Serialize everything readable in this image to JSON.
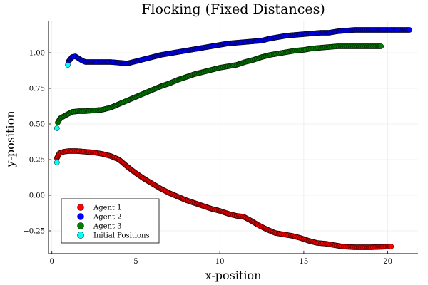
{
  "chart_data": {
    "type": "scatter",
    "title": "Flocking (Fixed Distances)",
    "xlabel": "x-position",
    "ylabel": "y-position",
    "xlim": [
      -0.2,
      21.8
    ],
    "ylim": [
      -0.41,
      1.22
    ],
    "x_ticks": [
      0,
      5,
      10,
      15,
      20
    ],
    "x_tick_labels": [
      "0",
      "5",
      "10",
      "15",
      "20"
    ],
    "y_ticks": [
      -0.25,
      0.0,
      0.25,
      0.5,
      0.75,
      1.0
    ],
    "y_tick_labels": [
      "−0.25",
      "0.00",
      "0.25",
      "0.50",
      "0.75",
      "1.00"
    ],
    "grid": true,
    "legend_position": "bottom-left",
    "series": [
      {
        "name": "Agent 1",
        "color": "#ff0000",
        "trajectory": [
          [
            0.3,
            0.26
          ],
          [
            0.45,
            0.295
          ],
          [
            0.7,
            0.305
          ],
          [
            1.0,
            0.31
          ],
          [
            1.5,
            0.31
          ],
          [
            2.0,
            0.305
          ],
          [
            2.5,
            0.3
          ],
          [
            3.0,
            0.29
          ],
          [
            3.5,
            0.275
          ],
          [
            4.0,
            0.25
          ],
          [
            4.5,
            0.2
          ],
          [
            5.0,
            0.155
          ],
          [
            5.5,
            0.115
          ],
          [
            6.0,
            0.08
          ],
          [
            6.5,
            0.045
          ],
          [
            7.0,
            0.015
          ],
          [
            7.5,
            -0.01
          ],
          [
            8.0,
            -0.035
          ],
          [
            8.5,
            -0.055
          ],
          [
            9.0,
            -0.075
          ],
          [
            9.5,
            -0.095
          ],
          [
            10.0,
            -0.11
          ],
          [
            10.5,
            -0.13
          ],
          [
            11.0,
            -0.145
          ],
          [
            11.4,
            -0.15
          ],
          [
            11.8,
            -0.175
          ],
          [
            12.3,
            -0.21
          ],
          [
            12.8,
            -0.24
          ],
          [
            13.3,
            -0.265
          ],
          [
            13.8,
            -0.275
          ],
          [
            14.3,
            -0.285
          ],
          [
            14.8,
            -0.3
          ],
          [
            15.3,
            -0.32
          ],
          [
            15.8,
            -0.335
          ],
          [
            16.3,
            -0.34
          ],
          [
            16.8,
            -0.35
          ],
          [
            17.3,
            -0.36
          ],
          [
            18.0,
            -0.365
          ],
          [
            19.0,
            -0.365
          ],
          [
            20.2,
            -0.36
          ]
        ]
      },
      {
        "name": "Agent 2",
        "color": "#0000ff",
        "trajectory": [
          [
            1.0,
            0.94
          ],
          [
            1.2,
            0.97
          ],
          [
            1.4,
            0.975
          ],
          [
            1.6,
            0.96
          ],
          [
            1.8,
            0.945
          ],
          [
            2.0,
            0.935
          ],
          [
            2.5,
            0.935
          ],
          [
            3.0,
            0.935
          ],
          [
            3.5,
            0.935
          ],
          [
            4.0,
            0.93
          ],
          [
            4.5,
            0.925
          ],
          [
            5.0,
            0.94
          ],
          [
            5.5,
            0.955
          ],
          [
            6.0,
            0.97
          ],
          [
            6.5,
            0.985
          ],
          [
            7.0,
            0.995
          ],
          [
            7.5,
            1.005
          ],
          [
            8.0,
            1.015
          ],
          [
            8.5,
            1.025
          ],
          [
            9.0,
            1.035
          ],
          [
            9.5,
            1.045
          ],
          [
            10.0,
            1.055
          ],
          [
            10.5,
            1.065
          ],
          [
            11.0,
            1.07
          ],
          [
            11.5,
            1.075
          ],
          [
            12.0,
            1.08
          ],
          [
            12.5,
            1.085
          ],
          [
            13.0,
            1.1
          ],
          [
            13.5,
            1.11
          ],
          [
            14.0,
            1.12
          ],
          [
            14.5,
            1.125
          ],
          [
            15.0,
            1.13
          ],
          [
            15.5,
            1.135
          ],
          [
            16.0,
            1.14
          ],
          [
            16.5,
            1.14
          ],
          [
            17.0,
            1.15
          ],
          [
            17.5,
            1.155
          ],
          [
            18.0,
            1.16
          ],
          [
            19.0,
            1.16
          ],
          [
            20.0,
            1.16
          ],
          [
            21.3,
            1.16
          ]
        ]
      },
      {
        "name": "Agent 3",
        "color": "#008000",
        "trajectory": [
          [
            0.35,
            0.51
          ],
          [
            0.5,
            0.54
          ],
          [
            0.8,
            0.56
          ],
          [
            1.2,
            0.585
          ],
          [
            1.6,
            0.59
          ],
          [
            2.0,
            0.59
          ],
          [
            2.5,
            0.595
          ],
          [
            3.0,
            0.6
          ],
          [
            3.5,
            0.615
          ],
          [
            4.0,
            0.64
          ],
          [
            4.5,
            0.665
          ],
          [
            5.0,
            0.69
          ],
          [
            5.5,
            0.715
          ],
          [
            6.0,
            0.74
          ],
          [
            6.5,
            0.765
          ],
          [
            7.0,
            0.785
          ],
          [
            7.5,
            0.81
          ],
          [
            8.0,
            0.83
          ],
          [
            8.5,
            0.85
          ],
          [
            9.0,
            0.865
          ],
          [
            9.5,
            0.88
          ],
          [
            10.0,
            0.895
          ],
          [
            10.5,
            0.905
          ],
          [
            11.0,
            0.915
          ],
          [
            11.5,
            0.935
          ],
          [
            12.0,
            0.95
          ],
          [
            12.5,
            0.97
          ],
          [
            13.0,
            0.985
          ],
          [
            13.5,
            0.995
          ],
          [
            14.0,
            1.005
          ],
          [
            14.5,
            1.015
          ],
          [
            15.0,
            1.02
          ],
          [
            15.5,
            1.03
          ],
          [
            16.0,
            1.035
          ],
          [
            16.5,
            1.04
          ],
          [
            17.0,
            1.045
          ],
          [
            18.0,
            1.045
          ],
          [
            19.0,
            1.045
          ],
          [
            19.6,
            1.045
          ]
        ]
      },
      {
        "name": "Initial Positions",
        "color": "#00ffff",
        "points": [
          [
            0.3,
            0.23
          ],
          [
            0.95,
            0.915
          ],
          [
            0.3,
            0.47
          ]
        ]
      }
    ]
  }
}
